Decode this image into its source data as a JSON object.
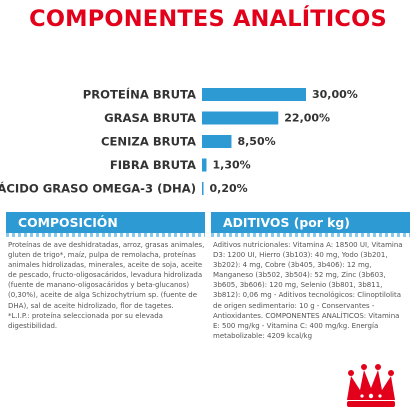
{
  "title": "COMPONENTES ANALÍTICOS",
  "chart_data": {
    "type": "bar",
    "orientation": "horizontal",
    "categories": [
      "PROTEÍNA BRUTA",
      "GRASA BRUTA",
      "CENIZA BRUTA",
      "FIBRA BRUTA",
      "ÁCIDO GRASO OMEGA-3 (DHA)"
    ],
    "values": [
      30.0,
      22.0,
      8.5,
      1.3,
      0.2
    ],
    "value_labels": [
      "30,00%",
      "22,00%",
      "8,50%",
      "1,30%",
      "0,20%"
    ],
    "title": "COMPONENTES ANALÍTICOS",
    "xlim": [
      0,
      30
    ],
    "grid": false,
    "legend": "none",
    "bar_color": "#2d9ad3"
  },
  "composicion": {
    "header": "COMPOSICIÓN",
    "text": "Proteínas de ave deshidratadas, arroz, grasas animales, gluten de trigo*, maíz, pulpa de remolacha, proteínas animales hidrolizadas, minerales, aceite de soja, aceite de pescado, fructo-oligosacáridos, levadura hidrolizada (fuente de manano-oligosacáridos y beta-glucanos) (0,30%), aceite de alga Schizochytrium sp. (fuente de DHA), sal de aceite hidrolizado, flor de tagetes.\n*L.I.P.: proteína seleccionada por su elevada digestibilidad."
  },
  "aditivos": {
    "header": "ADITIVOS (por kg)",
    "text": "Aditivos nutricionales: Vitamina A: 18500 UI, Vitamina D3: 1200 UI, Hierro (3b103): 40 mg, Yodo (3b201, 3b202): 4 mg, Cobre (3b405, 3b406): 12 mg, Manganeso (3b502, 3b504): 52 mg, Zinc (3b603, 3b605, 3b606): 120 mg, Selenio (3b801, 3b811, 3b812): 0,06 mg - Aditivos tecnológicos: Clinoptilolita de origen sedimentario: 10 g - Conservantes - Antioxidantes. COMPONENTES ANALÍTICOS: Vitamina E: 500 mg/kg - Vitamina C: 400 mg/kg. Energía metabolizable: 4209 kcal/kg"
  },
  "colors": {
    "title": "#e2001a",
    "accent": "#2d9ad3",
    "text": "#333333",
    "logo": "#e2001a"
  },
  "logo": {
    "icon": "crown-icon"
  }
}
